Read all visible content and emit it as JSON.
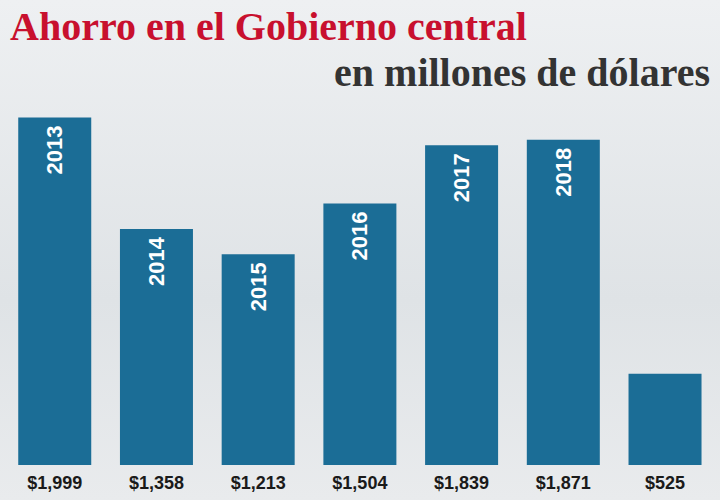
{
  "chart_data": {
    "type": "bar",
    "title": "Ahorro en el Gobierno central",
    "subtitle": "en millones de dólares",
    "categories": [
      "2013",
      "2014",
      "2015",
      "2016",
      "2017",
      "2018",
      null
    ],
    "values": [
      1999,
      1358,
      1213,
      1504,
      1839,
      1871,
      525
    ],
    "value_labels": [
      "$1,999",
      "$1,358",
      "$1,213",
      "$1,504",
      "$1,839",
      "$1,871",
      "$525"
    ],
    "color": "#1b6d96",
    "ylim": [
      0,
      2100
    ],
    "data_labels": true,
    "tick_labels": false,
    "grid": false
  }
}
